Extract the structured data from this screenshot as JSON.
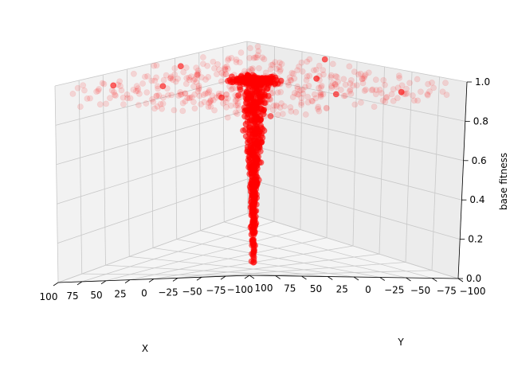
{
  "chart_data": {
    "type": "scatter3d",
    "title": "",
    "xlabel": "X",
    "ylabel": "Y",
    "zlabel": "base fitness",
    "xlim": [
      -100,
      100
    ],
    "ylim": [
      -100,
      100
    ],
    "zlim": [
      0,
      1
    ],
    "x_ticks": [
      "100",
      "75",
      "50",
      "25",
      "0",
      "−25",
      "−50",
      "−75",
      "−100"
    ],
    "y_ticks": [
      "100",
      "75",
      "50",
      "25",
      "0",
      "−25",
      "−50",
      "−75",
      "−100"
    ],
    "z_ticks": [
      "0.0",
      "0.2",
      "0.4",
      "0.6",
      "0.8",
      "1.0"
    ],
    "grid": true,
    "marker_color": "#ff0000",
    "series": [
      {
        "description": "Concentrated column of points near x≈0, y≈0 rising from fitness 0.0 to 1.0",
        "points_sample": [
          [
            0,
            0,
            0.0
          ],
          [
            1,
            -1,
            0.05
          ],
          [
            -1,
            1,
            0.1
          ],
          [
            2,
            0,
            0.15
          ],
          [
            0,
            2,
            0.2
          ],
          [
            -2,
            0,
            0.25
          ],
          [
            1,
            2,
            0.3
          ],
          [
            -1,
            -2,
            0.35
          ],
          [
            2,
            1,
            0.4
          ],
          [
            0,
            -1,
            0.45
          ],
          [
            3,
            0,
            0.5
          ],
          [
            -2,
            2,
            0.55
          ],
          [
            1,
            -3,
            0.6
          ],
          [
            4,
            2,
            0.65
          ],
          [
            -3,
            -2,
            0.7
          ],
          [
            5,
            3,
            0.75
          ],
          [
            -4,
            4,
            0.8
          ],
          [
            6,
            -3,
            0.85
          ],
          [
            -5,
            -5,
            0.9
          ],
          [
            8,
            6,
            0.95
          ],
          [
            0,
            0,
            1.0
          ],
          [
            -10,
            8,
            1.0
          ],
          [
            12,
            -6,
            1.0
          ]
        ]
      },
      {
        "description": "Diffuse scattered points spread across the domain near fitness 1.0",
        "points_sample": [
          [
            -80,
            -60,
            0.95
          ],
          [
            60,
            80,
            1.0
          ],
          [
            -40,
            70,
            0.98
          ],
          [
            90,
            -20,
            0.97
          ],
          [
            20,
            -90,
            1.0
          ],
          [
            -90,
            10,
            0.99
          ],
          [
            50,
            40,
            0.96
          ],
          [
            -20,
            -40,
            0.98
          ]
        ]
      }
    ]
  }
}
